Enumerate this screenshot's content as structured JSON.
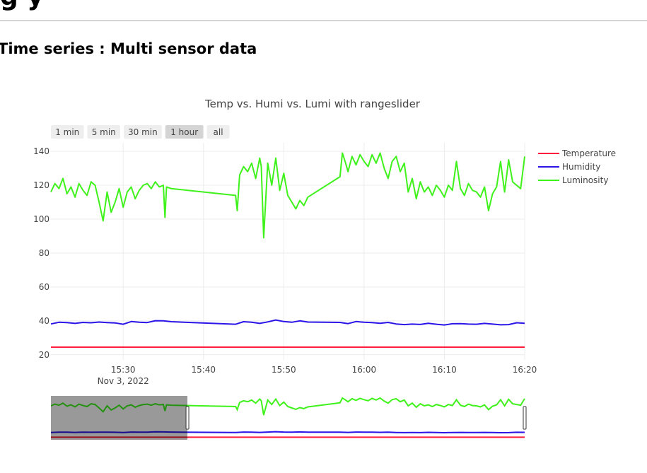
{
  "page": {
    "heading_fragment": "g                              y",
    "section_title": "Time series : Multi sensor data"
  },
  "range_selector": {
    "buttons": [
      {
        "label": "1 min",
        "active": false
      },
      {
        "label": "5 min",
        "active": false
      },
      {
        "label": "30 min",
        "active": false
      },
      {
        "label": "1 hour",
        "active": true
      },
      {
        "label": "all",
        "active": false
      }
    ]
  },
  "range_slider": {
    "selected_start": "15:21",
    "selected_end": "15:38"
  },
  "chart_data": {
    "type": "line",
    "title": "Temp vs. Humi vs. Lumi with rangeslider",
    "xlabel": "",
    "ylabel": "",
    "x_range": [
      "2022-11-03 15:21",
      "2022-11-03 16:20"
    ],
    "x_ticks": [
      {
        "time": "15:30",
        "label": "15:30",
        "sublabel": "Nov 3, 2022"
      },
      {
        "time": "15:40",
        "label": "15:40",
        "sublabel": ""
      },
      {
        "time": "15:50",
        "label": "15:50",
        "sublabel": ""
      },
      {
        "time": "16:00",
        "label": "16:00",
        "sublabel": ""
      },
      {
        "time": "16:10",
        "label": "16:10",
        "sublabel": ""
      },
      {
        "time": "16:20",
        "label": "16:20",
        "sublabel": ""
      }
    ],
    "ylim": [
      17,
      145
    ],
    "y_ticks": [
      20,
      40,
      60,
      80,
      100,
      120,
      140
    ],
    "grid": true,
    "legend_position": "right",
    "series": [
      {
        "name": "Temperature",
        "color": "#ff1b3a",
        "x": [
          "15:21",
          "15:35",
          "15:50",
          "16:05",
          "16:20"
        ],
        "y": [
          24.5,
          24.5,
          24.5,
          24.5,
          24.5
        ]
      },
      {
        "name": "Humidity",
        "color": "#2a14e8",
        "x": [
          "15:21",
          "15:22",
          "15:23",
          "15:24",
          "15:25",
          "15:26",
          "15:27",
          "15:28",
          "15:29",
          "15:30",
          "15:31",
          "15:32",
          "15:33",
          "15:34",
          "15:35",
          "15:36",
          "15:44",
          "15:45",
          "15:46",
          "15:47",
          "15:48",
          "15:49",
          "15:50",
          "15:51",
          "15:52",
          "15:53",
          "15:57",
          "15:58",
          "15:59",
          "16:00",
          "16:01",
          "16:02",
          "16:03",
          "16:04",
          "16:05",
          "16:06",
          "16:07",
          "16:08",
          "16:09",
          "16:10",
          "16:11",
          "16:12",
          "16:13",
          "16:14",
          "16:15",
          "16:16",
          "16:17",
          "16:18",
          "16:19",
          "16:20"
        ],
        "y": [
          38.2,
          39.2,
          39.0,
          38.5,
          39.1,
          38.9,
          39.3,
          39.0,
          38.8,
          38.0,
          39.6,
          39.2,
          39.0,
          40.1,
          40.0,
          39.5,
          38.0,
          39.5,
          39.2,
          38.5,
          39.4,
          40.5,
          39.6,
          39.2,
          40.0,
          39.3,
          39.1,
          38.4,
          39.6,
          39.2,
          39.0,
          38.6,
          39.1,
          38.2,
          37.8,
          38.1,
          37.9,
          38.6,
          38.0,
          37.6,
          38.3,
          38.4,
          38.1,
          38.0,
          38.5,
          38.1,
          37.7,
          37.8,
          38.9,
          38.6
        ]
      },
      {
        "name": "Luminosity",
        "color": "#3ff21b",
        "x": [
          "15:21",
          "15:21.5",
          "15:22",
          "15:22.5",
          "15:23",
          "15:23.5",
          "15:24",
          "15:24.5",
          "15:25",
          "15:25.5",
          "15:26",
          "15:26.5",
          "15:27",
          "15:27.5",
          "15:28",
          "15:28.5",
          "15:29",
          "15:29.5",
          "15:30",
          "15:30.5",
          "15:31",
          "15:31.5",
          "15:32",
          "15:32.5",
          "15:33",
          "15:33.5",
          "15:34",
          "15:34.5",
          "15:35",
          "15:35.2",
          "15:35.4",
          "15:36",
          "15:44",
          "15:44.2",
          "15:44.5",
          "15:45",
          "15:45.5",
          "15:46",
          "15:46.5",
          "15:47",
          "15:47.2",
          "15:47.5",
          "15:48",
          "15:48.5",
          "15:49",
          "15:49.5",
          "15:50",
          "15:50.5",
          "15:51",
          "15:51.5",
          "15:52",
          "15:52.5",
          "15:53",
          "15:57",
          "15:57.3",
          "15:57.7",
          "15:58",
          "15:58.5",
          "15:59",
          "15:59.5",
          "16:00",
          "16:00.5",
          "16:01",
          "16:01.5",
          "16:02",
          "16:02.5",
          "16:03",
          "16:03.5",
          "16:04",
          "16:04.5",
          "16:05",
          "16:05.5",
          "16:06",
          "16:06.5",
          "16:07",
          "16:07.5",
          "16:08",
          "16:08.5",
          "16:09",
          "16:09.5",
          "16:10",
          "16:10.5",
          "16:11",
          "16:11.5",
          "16:12",
          "16:12.5",
          "16:13",
          "16:13.5",
          "16:14",
          "16:14.5",
          "16:15",
          "16:15.5",
          "16:16",
          "16:16.5",
          "16:17",
          "16:17.5",
          "16:18",
          "16:18.5",
          "16:19",
          "16:19.5",
          "16:20"
        ],
        "y": [
          116,
          121,
          118,
          124,
          115,
          119,
          113,
          121,
          117,
          114,
          122,
          120,
          110,
          99,
          116,
          104,
          110,
          118,
          107,
          116,
          119,
          112,
          117,
          120,
          121,
          118,
          122,
          119,
          120,
          101,
          119,
          118,
          114,
          105,
          126,
          131,
          128,
          133,
          124,
          136,
          131,
          89,
          133,
          120,
          136,
          117,
          127,
          114,
          110,
          106,
          111,
          108,
          113,
          125,
          139,
          133,
          128,
          137,
          132,
          138,
          134,
          131,
          138,
          133,
          139,
          130,
          124,
          134,
          137,
          128,
          133,
          116,
          124,
          112,
          122,
          116,
          119,
          114,
          120,
          117,
          113,
          120,
          117,
          134,
          118,
          114,
          121,
          117,
          116,
          113,
          119,
          105,
          115,
          119,
          134,
          116,
          135,
          122,
          120,
          118,
          137
        ]
      }
    ]
  }
}
